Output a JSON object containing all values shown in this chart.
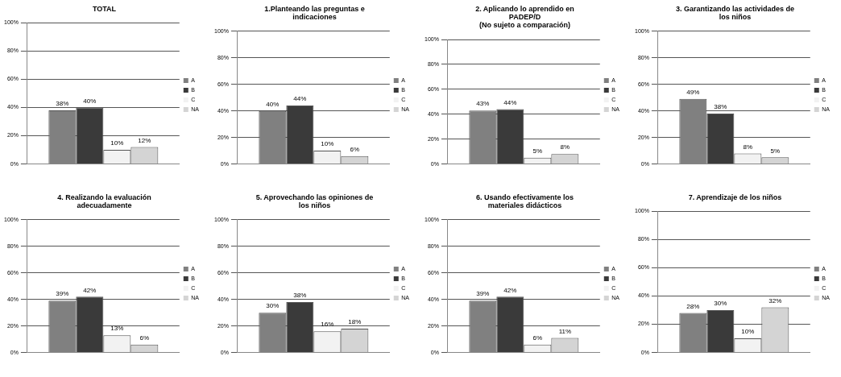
{
  "chart_data": [
    {
      "type": "bar",
      "title": "TOTAL",
      "categories": [
        null
      ],
      "ylim": [
        0,
        100
      ],
      "yticks": [
        {
          "value": 0,
          "label": "0%"
        },
        {
          "value": 20,
          "label": "20%"
        },
        {
          "value": 40,
          "label": "40%"
        },
        {
          "value": 60,
          "label": "60%"
        },
        {
          "value": 80,
          "label": "80%"
        },
        {
          "value": 100,
          "label": "100%"
        }
      ],
      "grid": "y",
      "legend": "right",
      "series": [
        {
          "name": "A",
          "color": "#808080",
          "values": [
            38
          ],
          "value_labels": [
            "38%"
          ]
        },
        {
          "name": "B",
          "color": "#3a3a3a",
          "values": [
            40
          ],
          "value_labels": [
            "40%"
          ]
        },
        {
          "name": "C",
          "color": "#f2f2f2",
          "values": [
            10
          ],
          "value_labels": [
            "10%"
          ]
        },
        {
          "name": "NA",
          "color": "#d4d4d4",
          "values": [
            12
          ],
          "value_labels": [
            "12%"
          ]
        }
      ]
    },
    {
      "type": "bar",
      "title": "1.Planteando las preguntas e\nindicaciones",
      "categories": [
        null
      ],
      "ylim": [
        0,
        100
      ],
      "yticks": [
        {
          "value": 0,
          "label": "0%"
        },
        {
          "value": 20,
          "label": "20%"
        },
        {
          "value": 40,
          "label": "40%"
        },
        {
          "value": 60,
          "label": "60%"
        },
        {
          "value": 80,
          "label": "80%"
        },
        {
          "value": 100,
          "label": "100%"
        }
      ],
      "grid": "y",
      "legend": "right",
      "series": [
        {
          "name": "A",
          "color": "#808080",
          "values": [
            40
          ],
          "value_labels": [
            "40%"
          ]
        },
        {
          "name": "B",
          "color": "#3a3a3a",
          "values": [
            44
          ],
          "value_labels": [
            "44%"
          ]
        },
        {
          "name": "C",
          "color": "#f2f2f2",
          "values": [
            10
          ],
          "value_labels": [
            "10%"
          ]
        },
        {
          "name": "NA",
          "color": "#d4d4d4",
          "values": [
            6
          ],
          "value_labels": [
            "6%"
          ]
        }
      ]
    },
    {
      "type": "bar",
      "title": "2. Aplicando lo aprendido en\nPADEP/D\n(No sujeto a comparación)",
      "categories": [
        null
      ],
      "ylim": [
        0,
        100
      ],
      "yticks": [
        {
          "value": 0,
          "label": "0%"
        },
        {
          "value": 20,
          "label": "20%"
        },
        {
          "value": 40,
          "label": "40%"
        },
        {
          "value": 60,
          "label": "60%"
        },
        {
          "value": 80,
          "label": "80%"
        },
        {
          "value": 100,
          "label": "100%"
        }
      ],
      "grid": "y",
      "legend": "right",
      "series": [
        {
          "name": "A",
          "color": "#808080",
          "values": [
            43
          ],
          "value_labels": [
            "43%"
          ]
        },
        {
          "name": "B",
          "color": "#3a3a3a",
          "values": [
            44
          ],
          "value_labels": [
            "44%"
          ]
        },
        {
          "name": "C",
          "color": "#f2f2f2",
          "values": [
            5
          ],
          "value_labels": [
            "5%"
          ]
        },
        {
          "name": "NA",
          "color": "#d4d4d4",
          "values": [
            8
          ],
          "value_labels": [
            "8%"
          ]
        }
      ]
    },
    {
      "type": "bar",
      "title": "3. Garantizando las actividades de\nlos niños",
      "categories": [
        null
      ],
      "ylim": [
        0,
        100
      ],
      "yticks": [
        {
          "value": 0,
          "label": "0%"
        },
        {
          "value": 20,
          "label": "20%"
        },
        {
          "value": 40,
          "label": "40%"
        },
        {
          "value": 60,
          "label": "60%"
        },
        {
          "value": 80,
          "label": "80%"
        },
        {
          "value": 100,
          "label": "100%"
        }
      ],
      "grid": "y",
      "legend": "right",
      "series": [
        {
          "name": "A",
          "color": "#808080",
          "values": [
            49
          ],
          "value_labels": [
            "49%"
          ]
        },
        {
          "name": "B",
          "color": "#3a3a3a",
          "values": [
            38
          ],
          "value_labels": [
            "38%"
          ]
        },
        {
          "name": "C",
          "color": "#f2f2f2",
          "values": [
            8
          ],
          "value_labels": [
            "8%"
          ]
        },
        {
          "name": "NA",
          "color": "#d4d4d4",
          "values": [
            5
          ],
          "value_labels": [
            "5%"
          ]
        }
      ]
    },
    {
      "type": "bar",
      "title": "4. Realizando la evaluación\nadecuadamente",
      "categories": [
        null
      ],
      "ylim": [
        0,
        100
      ],
      "yticks": [
        {
          "value": 0,
          "label": "0%"
        },
        {
          "value": 20,
          "label": "20%"
        },
        {
          "value": 40,
          "label": "40%"
        },
        {
          "value": 60,
          "label": "60%"
        },
        {
          "value": 80,
          "label": "80%"
        },
        {
          "value": 100,
          "label": "100%"
        }
      ],
      "grid": "y",
      "legend": "right",
      "series": [
        {
          "name": "A",
          "color": "#808080",
          "values": [
            39
          ],
          "value_labels": [
            "39%"
          ]
        },
        {
          "name": "B",
          "color": "#3a3a3a",
          "values": [
            42
          ],
          "value_labels": [
            "42%"
          ]
        },
        {
          "name": "C",
          "color": "#f2f2f2",
          "values": [
            13
          ],
          "value_labels": [
            "13%"
          ]
        },
        {
          "name": "NA",
          "color": "#d4d4d4",
          "values": [
            6
          ],
          "value_labels": [
            "6%"
          ]
        }
      ]
    },
    {
      "type": "bar",
      "title": "5. Aprovechando las opiniones de\nlos niños",
      "categories": [
        null
      ],
      "ylim": [
        0,
        100
      ],
      "yticks": [
        {
          "value": 0,
          "label": "0%"
        },
        {
          "value": 20,
          "label": "20%"
        },
        {
          "value": 40,
          "label": "40%"
        },
        {
          "value": 60,
          "label": "60%"
        },
        {
          "value": 80,
          "label": "80%"
        },
        {
          "value": 100,
          "label": "100%"
        }
      ],
      "grid": "y",
      "legend": "right",
      "series": [
        {
          "name": "A",
          "color": "#808080",
          "values": [
            30
          ],
          "value_labels": [
            "30%"
          ]
        },
        {
          "name": "B",
          "color": "#3a3a3a",
          "values": [
            38
          ],
          "value_labels": [
            "38%"
          ]
        },
        {
          "name": "C",
          "color": "#f2f2f2",
          "values": [
            16
          ],
          "value_labels": [
            "16%"
          ]
        },
        {
          "name": "NA",
          "color": "#d4d4d4",
          "values": [
            18
          ],
          "value_labels": [
            "18%"
          ]
        }
      ]
    },
    {
      "type": "bar",
      "title": "6. Usando efectivamente los\nmateriales didácticos",
      "categories": [
        null
      ],
      "ylim": [
        0,
        100
      ],
      "yticks": [
        {
          "value": 0,
          "label": "0%"
        },
        {
          "value": 20,
          "label": "20%"
        },
        {
          "value": 40,
          "label": "40%"
        },
        {
          "value": 60,
          "label": "60%"
        },
        {
          "value": 80,
          "label": "80%"
        },
        {
          "value": 100,
          "label": "100%"
        }
      ],
      "grid": "y",
      "legend": "right",
      "series": [
        {
          "name": "A",
          "color": "#808080",
          "values": [
            39
          ],
          "value_labels": [
            "39%"
          ]
        },
        {
          "name": "B",
          "color": "#3a3a3a",
          "values": [
            42
          ],
          "value_labels": [
            "42%"
          ]
        },
        {
          "name": "C",
          "color": "#f2f2f2",
          "values": [
            6
          ],
          "value_labels": [
            "6%"
          ]
        },
        {
          "name": "NA",
          "color": "#d4d4d4",
          "values": [
            11
          ],
          "value_labels": [
            "11%"
          ]
        }
      ]
    },
    {
      "type": "bar",
      "title": "7. Aprendizaje de los niños",
      "categories": [
        null
      ],
      "ylim": [
        0,
        100
      ],
      "yticks": [
        {
          "value": 0,
          "label": "0%"
        },
        {
          "value": 20,
          "label": "20%"
        },
        {
          "value": 40,
          "label": "40%"
        },
        {
          "value": 60,
          "label": "60%"
        },
        {
          "value": 80,
          "label": "80%"
        },
        {
          "value": 100,
          "label": "100%"
        }
      ],
      "grid": "y",
      "legend": "right",
      "series": [
        {
          "name": "A",
          "color": "#808080",
          "values": [
            28
          ],
          "value_labels": [
            "28%"
          ]
        },
        {
          "name": "B",
          "color": "#3a3a3a",
          "values": [
            30
          ],
          "value_labels": [
            "30%"
          ]
        },
        {
          "name": "C",
          "color": "#f2f2f2",
          "values": [
            10
          ],
          "value_labels": [
            "10%"
          ]
        },
        {
          "name": "NA",
          "color": "#d4d4d4",
          "values": [
            32
          ],
          "value_labels": [
            "32%"
          ]
        }
      ]
    }
  ]
}
